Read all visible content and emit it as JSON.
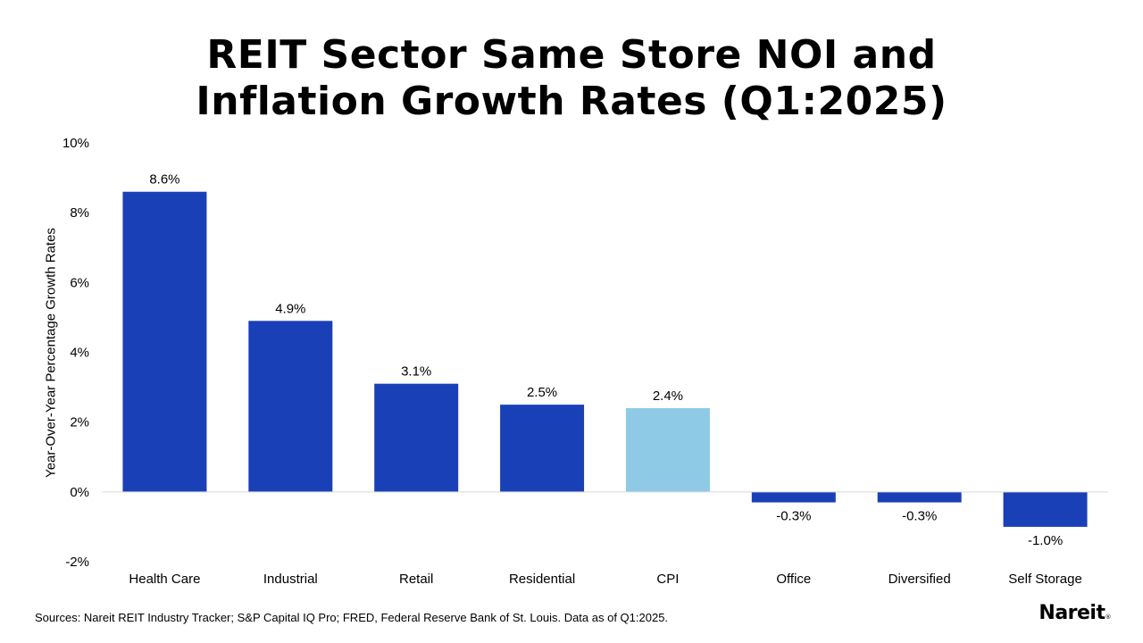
{
  "title": {
    "line1": "REIT Sector Same Store NOI and",
    "line2": "Inflation Growth Rates (Q1:2025)"
  },
  "chart_data": {
    "type": "bar",
    "title": "REIT Sector Same Store NOI and Inflation Growth Rates (Q1:2025)",
    "xlabel": "",
    "ylabel": "Year-Over-Year Percentage Growth Rates",
    "ylim": [
      -2,
      10
    ],
    "yticks": [
      -2,
      0,
      2,
      4,
      6,
      8,
      10
    ],
    "ytick_labels": [
      "-2%",
      "0%",
      "2%",
      "4%",
      "6%",
      "8%",
      "10%"
    ],
    "categories": [
      "Health Care",
      "Industrial",
      "Retail",
      "Residential",
      "CPI",
      "Office",
      "Diversified",
      "Self Storage"
    ],
    "values": [
      8.6,
      4.9,
      3.1,
      2.5,
      2.4,
      -0.3,
      -0.3,
      -1.0
    ],
    "value_labels": [
      "8.6%",
      "4.9%",
      "3.1%",
      "2.5%",
      "2.4%",
      "-0.3%",
      "-0.3%",
      "-1.0%"
    ],
    "bar_colors": [
      "#1a40b8",
      "#1a40b8",
      "#1a40b8",
      "#1a40b8",
      "#8ecae6",
      "#1a40b8",
      "#1a40b8",
      "#1a40b8"
    ],
    "grid": false,
    "legend": "none"
  },
  "footer": {
    "source": "Sources: Nareit REIT Industry Tracker; S&P Capital IQ Pro; FRED, Federal Reserve Bank of St. Louis. Data as of Q1:2025.",
    "logo": "Nareit",
    "logo_mark": "®"
  },
  "colors": {
    "primary_bar": "#1a40b8",
    "cpi_bar": "#8ecae6",
    "axis_line": "#d9d9d9"
  }
}
